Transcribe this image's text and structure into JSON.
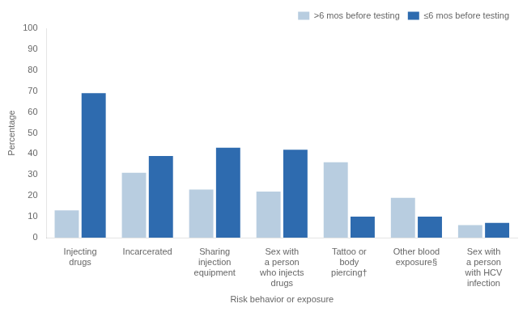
{
  "chart_data": {
    "type": "bar",
    "categories": [
      "Injecting\ndrugs",
      "Incarcerated",
      "Sharing\ninjection\nequipment",
      "Sex with\na person\nwho injects\ndrugs",
      "Tattoo or\nbody\npiercing†",
      "Other blood\nexposure§",
      "Sex with\na person\nwith HCV\ninfection"
    ],
    "series": [
      {
        "name": ">6 mos before testing",
        "color": "#b8cde0",
        "values": [
          13,
          31,
          23,
          22,
          36,
          19,
          6
        ]
      },
      {
        "name": "≤6 mos before testing",
        "color": "#2e6baf",
        "values": [
          69,
          39,
          43,
          42,
          10,
          10,
          7
        ]
      }
    ],
    "xlabel": "Risk behavior or exposure",
    "ylabel": "Percentage",
    "ylim": [
      0,
      100
    ],
    "yticks": [
      0,
      10,
      20,
      30,
      40,
      50,
      60,
      70,
      80,
      90,
      100
    ],
    "grid": false,
    "legend": "upper right"
  }
}
